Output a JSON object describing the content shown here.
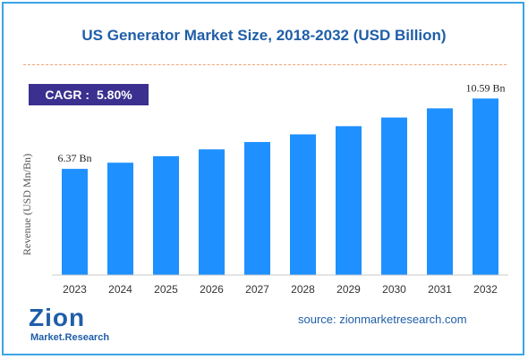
{
  "cagr": {
    "label": "CAGR :",
    "value": "5.80%"
  },
  "source": "source: zionmarketresearch.com",
  "logo": {
    "brand": "Zion",
    "sub": "Market.Research"
  },
  "colors": {
    "bar": "#1e90ff",
    "title": "#1f5ea8",
    "cagr_bg": "#3b2f8f",
    "frame": "#3ba3e6",
    "divider": "#f0a472"
  },
  "chart_data": {
    "type": "bar",
    "title": "US Generator Market Size, 2018-2032 (USD Billion)",
    "xlabel": "",
    "ylabel": "Revenue (USD Mn/Bn)",
    "categories": [
      "2023",
      "2024",
      "2025",
      "2026",
      "2027",
      "2028",
      "2029",
      "2030",
      "2031",
      "2032"
    ],
    "values": [
      6.37,
      6.74,
      7.13,
      7.54,
      7.98,
      8.44,
      8.93,
      9.45,
      10.0,
      10.59
    ],
    "data_labels": [
      {
        "index": 0,
        "text": "6.37 Bn"
      },
      {
        "index": 9,
        "text": "10.59 Bn"
      }
    ],
    "ylim": [
      0,
      12
    ],
    "grid": false,
    "legend": "none"
  }
}
